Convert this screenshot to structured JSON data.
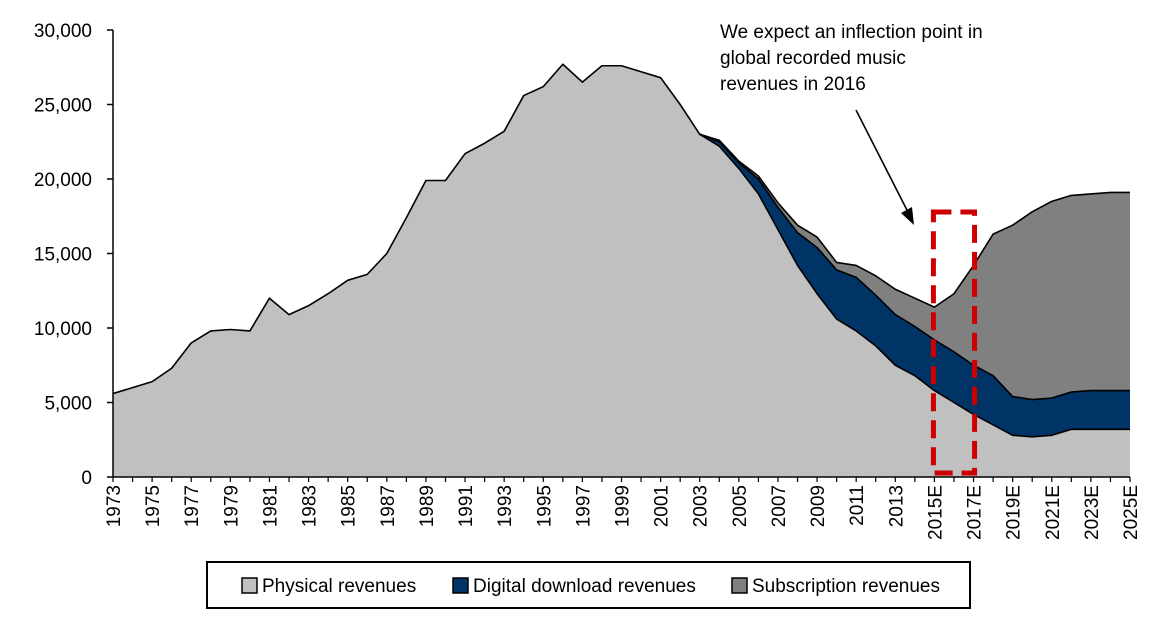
{
  "chart_data": {
    "type": "area",
    "stacked": true,
    "title": "",
    "xlabel": "",
    "ylabel": "",
    "ylim": [
      0,
      30000
    ],
    "yticks": [
      0,
      5000,
      10000,
      15000,
      20000,
      25000,
      30000
    ],
    "ytick_labels": [
      "0",
      "5,000",
      "10,000",
      "15,000",
      "20,000",
      "25,000",
      "30,000"
    ],
    "x": [
      "1973",
      "1974",
      "1975",
      "1976",
      "1977",
      "1978",
      "1979",
      "1980",
      "1981",
      "1982",
      "1983",
      "1984",
      "1985",
      "1986",
      "1987",
      "1988",
      "1989",
      "1990",
      "1991",
      "1992",
      "1993",
      "1994",
      "1995",
      "1996",
      "1997",
      "1998",
      "1999",
      "2000",
      "2001",
      "2002",
      "2003",
      "2004",
      "2005",
      "2006",
      "2007",
      "2008",
      "2009",
      "2010",
      "2011",
      "2012",
      "2013",
      "2014",
      "2015E",
      "2016E",
      "2017E",
      "2018E",
      "2019E",
      "2020E",
      "2021E",
      "2022E",
      "2023E",
      "2024E",
      "2025E"
    ],
    "xtick_labels": [
      "1973",
      "1975",
      "1977",
      "1979",
      "1981",
      "1983",
      "1985",
      "1987",
      "1989",
      "1991",
      "1993",
      "1995",
      "1997",
      "1999",
      "2001",
      "2003",
      "2005",
      "2007",
      "2009",
      "2011",
      "2013",
      "2015E",
      "2017E",
      "2019E",
      "2021E",
      "2023E",
      "2025E"
    ],
    "series": [
      {
        "name": "Physical revenues",
        "color": "#c0c0c0",
        "values": [
          5600,
          6000,
          6400,
          7300,
          9000,
          9800,
          9900,
          9800,
          12000,
          10900,
          11500,
          12300,
          13200,
          13600,
          15000,
          17400,
          19900,
          19900,
          21700,
          22400,
          23200,
          25600,
          26200,
          27700,
          26500,
          27600,
          27600,
          27200,
          26800,
          25000,
          23000,
          22200,
          20700,
          19000,
          16600,
          14200,
          12300,
          10600,
          9800,
          8800,
          7500,
          6800,
          5800,
          5000,
          4200,
          3500,
          2800,
          2700,
          2800,
          3200,
          3200,
          3200,
          3200
        ]
      },
      {
        "name": "Digital download revenues",
        "color": "#003366",
        "values": [
          0,
          0,
          0,
          0,
          0,
          0,
          0,
          0,
          0,
          0,
          0,
          0,
          0,
          0,
          0,
          0,
          0,
          0,
          0,
          0,
          0,
          0,
          0,
          0,
          0,
          0,
          0,
          0,
          0,
          0,
          0,
          300,
          400,
          1000,
          1500,
          2200,
          3100,
          3300,
          3600,
          3400,
          3400,
          3300,
          3400,
          3400,
          3300,
          3300,
          2600,
          2500,
          2500,
          2500,
          2600,
          2600,
          2600
        ]
      },
      {
        "name": "Subscription revenues",
        "color": "#808080",
        "values": [
          0,
          0,
          0,
          0,
          0,
          0,
          0,
          0,
          0,
          0,
          0,
          0,
          0,
          0,
          0,
          0,
          0,
          0,
          0,
          0,
          0,
          0,
          0,
          0,
          0,
          0,
          0,
          0,
          0,
          0,
          0,
          100,
          100,
          200,
          300,
          500,
          700,
          500,
          800,
          1300,
          1700,
          1900,
          2200,
          3900,
          6700,
          9500,
          11500,
          12600,
          13200,
          13200,
          13200,
          13300,
          13300
        ]
      }
    ],
    "annotation": {
      "lines": [
        "We expect an inflection point in",
        "global recorded music",
        "revenues in 2016"
      ],
      "highlight_range": [
        "2015E",
        "2017E"
      ],
      "highlight_color": "#cc0000"
    },
    "legend_position": "bottom"
  }
}
